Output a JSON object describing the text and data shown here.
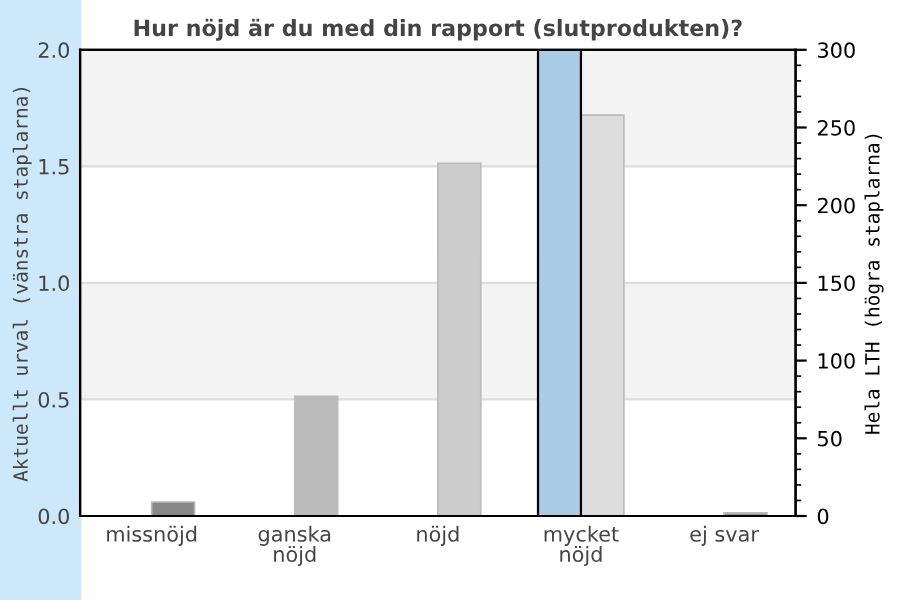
{
  "chart_data": {
    "type": "bar",
    "title": "Hur nöjd är du med din rapport (slutprodukten)?",
    "ylabel": "Aktuellt urval (vänstra staplarna)",
    "y2label": "Hela LTH (högra staplarna)",
    "categories": [
      "missnöjd",
      "ganska\nnöjd",
      "nöjd",
      "mycket\nnöjd",
      "ej svar"
    ],
    "series": [
      {
        "color": "#aacce6",
        "values": [
          0,
          0,
          0,
          2.0,
          0
        ]
      },
      {
        "colors": [
          "#888888",
          "#bbbbbb",
          "#cccccc",
          "#dddddd",
          "#999999"
        ],
        "values": [
          9,
          77,
          227,
          258,
          2
        ],
        "axis": "y2"
      }
    ],
    "ylim": [
      0,
      2.0
    ],
    "yticks": [
      {
        "value": 0,
        "label": "0.0"
      },
      0.5,
      {
        "value": 1,
        "label": "1.0"
      },
      1.5,
      {
        "value": 2,
        "label": "2.0"
      }
    ],
    "y2lim": [
      0,
      300
    ],
    "y2ticks": [
      0,
      50,
      100,
      150,
      200,
      250,
      300
    ],
    "bands": [
      {
        "axis": "y",
        "from": 0.5,
        "to": 1.0,
        "color": "#f3f3f3"
      },
      {
        "axis": "y",
        "from": 1.5,
        "to": 2.0,
        "color": "#f3f3f3"
      }
    ],
    "grid": "y",
    "legend": false
  }
}
